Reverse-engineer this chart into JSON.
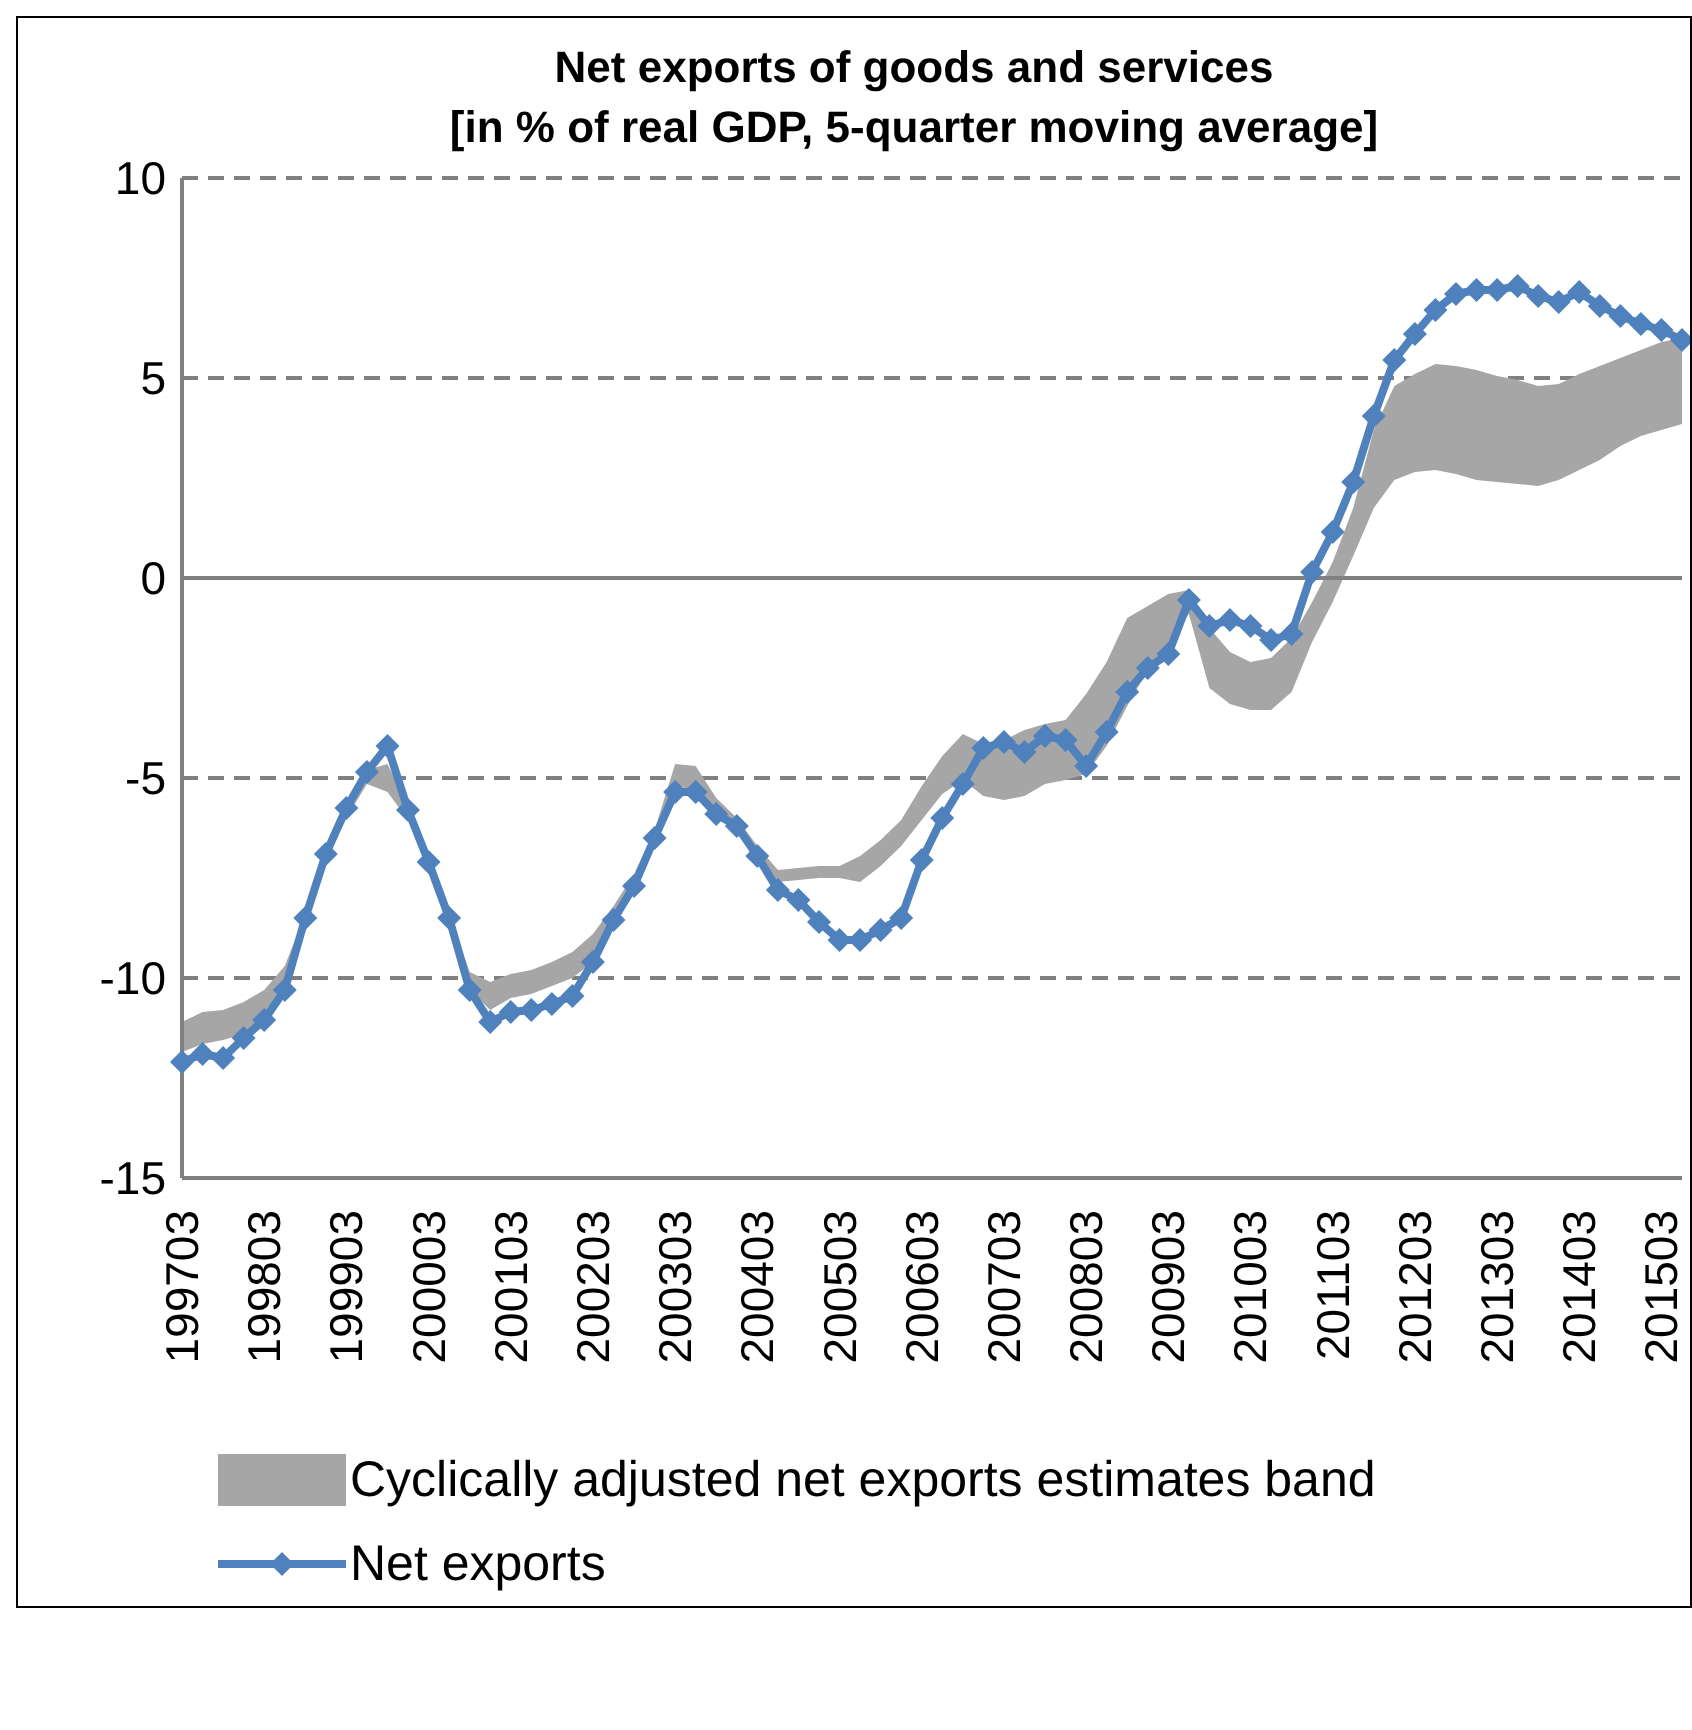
{
  "chart_data": {
    "type": "line",
    "title": "Net exports of goods and services\n[in % of real GDP, 5-quarter moving average]",
    "categories": [
      "199703",
      null,
      null,
      null,
      "199803",
      null,
      null,
      null,
      "199903",
      null,
      null,
      null,
      "200003",
      null,
      null,
      null,
      "200103",
      null,
      null,
      null,
      "200203",
      null,
      null,
      null,
      "200303",
      null,
      null,
      null,
      "200403",
      null,
      null,
      null,
      "200503",
      null,
      null,
      null,
      "200603",
      null,
      null,
      null,
      "200703",
      null,
      null,
      null,
      "200803",
      null,
      null,
      null,
      "200903",
      null,
      null,
      null,
      "201003",
      null,
      null,
      null,
      "201103",
      null,
      null,
      null,
      "201203",
      null,
      null,
      null,
      "201303",
      null,
      null,
      null,
      "201403",
      null,
      null,
      null,
      "201503",
      null
    ],
    "series": [
      {
        "type": "area",
        "name": "Cyclically adjusted net exports estimates band",
        "color": "#a6a6a6",
        "lower": [
          -11.85,
          -11.65,
          -11.55,
          -11.4,
          -10.95,
          -10.4,
          -8.7,
          -7.1,
          -6.0,
          -5.15,
          -5.35,
          -6.05,
          -7.3,
          -8.7,
          -10.3,
          -10.8,
          -10.5,
          -10.4,
          -10.2,
          -10.0,
          -9.6,
          -8.7,
          -7.8,
          -6.6,
          -5.2,
          -5.3,
          -5.9,
          -6.3,
          -7.0,
          -7.6,
          -7.55,
          -7.5,
          -7.5,
          -7.6,
          -7.2,
          -6.7,
          -6.05,
          -5.4,
          -5.05,
          -5.45,
          -5.55,
          -5.45,
          -5.15,
          -5.05,
          -4.9,
          -4.2,
          -3.2,
          -2.3,
          -1.65,
          -0.9,
          -2.75,
          -3.15,
          -3.3,
          -3.3,
          -2.85,
          -1.6,
          -0.6,
          0.55,
          1.75,
          2.45,
          2.65,
          2.7,
          2.6,
          2.45,
          2.4,
          2.35,
          2.3,
          2.45,
          2.7,
          2.95,
          3.3,
          3.55,
          3.7,
          3.85
        ],
        "values": [
          null,
          null,
          null,
          null,
          null,
          null,
          null,
          null,
          null,
          null,
          null,
          null,
          null,
          null,
          null,
          null,
          null,
          null,
          null,
          null,
          null,
          null,
          null,
          null,
          null,
          null,
          null,
          null,
          null,
          null,
          null,
          null,
          null,
          null,
          null,
          null,
          null,
          null,
          null,
          null,
          null,
          null,
          null,
          null,
          null,
          null,
          null,
          null,
          null,
          null,
          null,
          null,
          null,
          null,
          null,
          null,
          null,
          null,
          null,
          null,
          null,
          null,
          null,
          null,
          null,
          null,
          null,
          null,
          null,
          null,
          null,
          null,
          null,
          null
        ],
        "upper": [
          -11.1,
          -10.85,
          -10.8,
          -10.6,
          -10.3,
          -9.7,
          -8.4,
          -6.8,
          -5.8,
          -4.8,
          -4.65,
          -5.7,
          -7.0,
          -8.4,
          -9.85,
          -10.1,
          -9.9,
          -9.8,
          -9.6,
          -9.35,
          -8.9,
          -8.2,
          -7.4,
          -6.3,
          -4.65,
          -4.7,
          -5.5,
          -6.0,
          -6.7,
          -7.3,
          -7.25,
          -7.2,
          -7.2,
          -6.95,
          -6.55,
          -6.05,
          -5.2,
          -4.45,
          -3.9,
          -4.15,
          -4.05,
          -3.8,
          -3.65,
          -3.55,
          -2.9,
          -2.1,
          -1.0,
          -0.7,
          -0.4,
          -0.3,
          -1.25,
          -1.85,
          -2.1,
          -2.0,
          -1.5,
          -0.6,
          0.4,
          1.75,
          3.7,
          4.8,
          5.1,
          5.35,
          5.3,
          5.2,
          5.05,
          4.95,
          4.8,
          4.85,
          5.1,
          5.3,
          5.5,
          5.7,
          5.9,
          6.0
        ]
      },
      {
        "name": "Net exports",
        "color": "#4f81bd",
        "marker": "diamond",
        "values": [
          -12.1,
          -11.9,
          -12.0,
          -11.5,
          -11.05,
          -10.3,
          -8.5,
          -6.9,
          -5.75,
          -4.85,
          -4.2,
          -5.8,
          -7.1,
          -8.5,
          -10.3,
          -11.1,
          -10.85,
          -10.8,
          -10.65,
          -10.45,
          -9.6,
          -8.55,
          -7.7,
          -6.5,
          -5.35,
          -5.35,
          -5.9,
          -6.2,
          -6.95,
          -7.8,
          -8.05,
          -8.6,
          -9.05,
          -9.05,
          -8.8,
          -8.5,
          -7.05,
          -6.0,
          -5.15,
          -4.25,
          -4.1,
          -4.35,
          -3.95,
          -4.05,
          -4.7,
          -3.85,
          -2.85,
          -2.25,
          -1.9,
          -0.55,
          -1.2,
          -1.05,
          -1.2,
          -1.55,
          -1.4,
          0.15,
          1.15,
          2.4,
          4.05,
          5.45,
          6.1,
          6.7,
          7.1,
          7.2,
          7.2,
          7.3,
          7.05,
          6.9,
          7.15,
          6.8,
          6.55,
          6.35,
          6.2,
          5.95
        ]
      }
    ],
    "ylim": [
      -15,
      10
    ],
    "yticks": [
      -15,
      -10,
      -5,
      0,
      5,
      10
    ],
    "grid": "y",
    "legend": "bottom",
    "line_style": "solid"
  }
}
